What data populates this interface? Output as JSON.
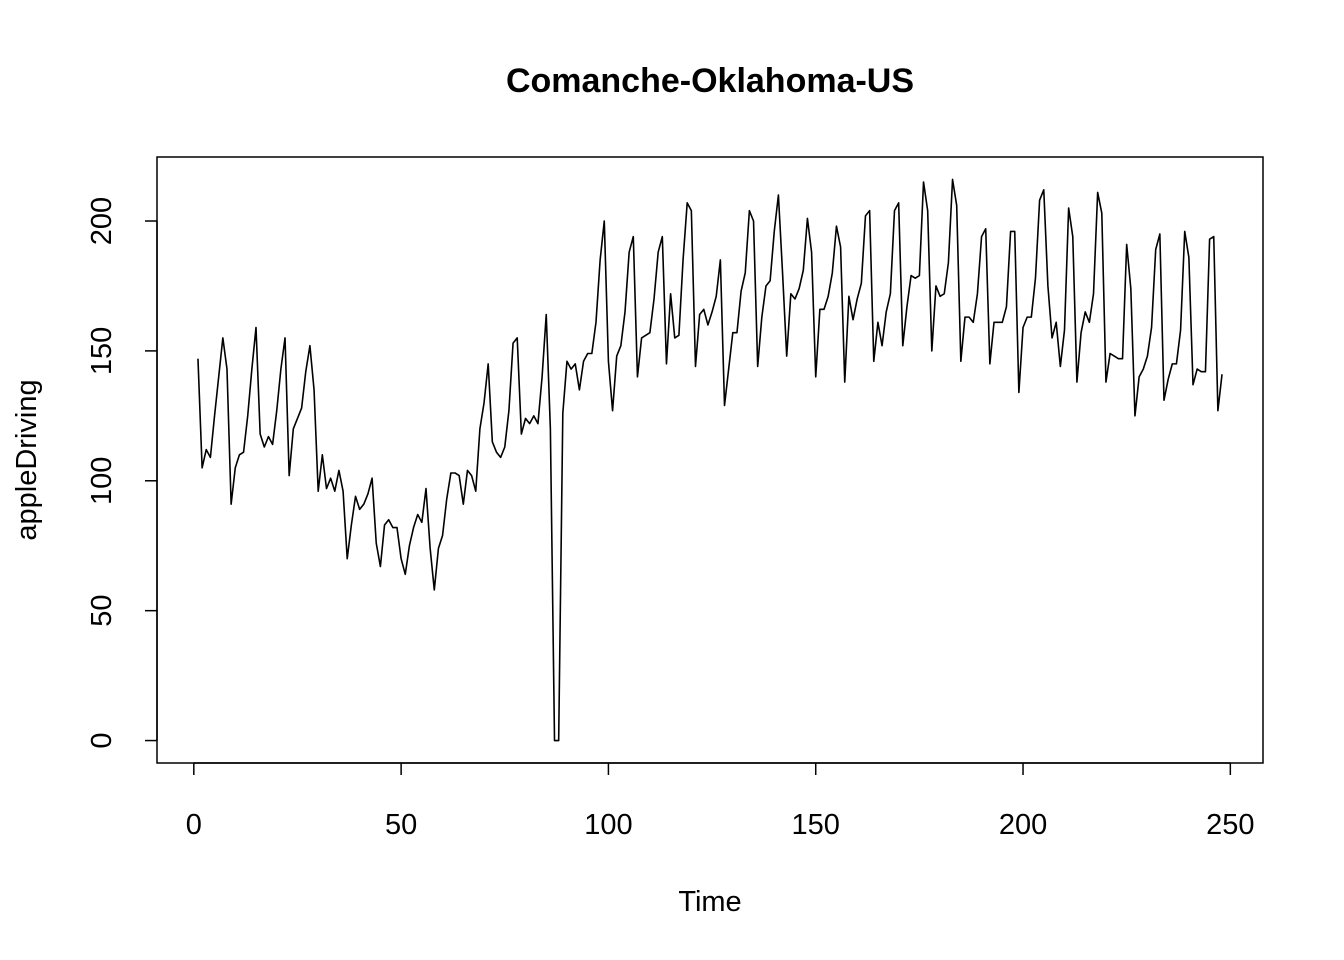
{
  "chart_data": {
    "type": "line",
    "title": "Comanche-Oklahoma-US",
    "xlabel": "Time",
    "ylabel": "appleDriving",
    "x": [
      1,
      2,
      3,
      4,
      5,
      6,
      7,
      8,
      9,
      10,
      11,
      12,
      13,
      14,
      15,
      16,
      17,
      18,
      19,
      20,
      21,
      22,
      23,
      24,
      25,
      26,
      27,
      28,
      29,
      30,
      31,
      32,
      33,
      34,
      35,
      36,
      37,
      38,
      39,
      40,
      41,
      42,
      43,
      44,
      45,
      46,
      47,
      48,
      49,
      50,
      51,
      52,
      53,
      54,
      55,
      56,
      57,
      58,
      59,
      60,
      61,
      62,
      63,
      64,
      65,
      66,
      67,
      68,
      69,
      70,
      71,
      72,
      73,
      74,
      75,
      76,
      77,
      78,
      79,
      80,
      81,
      82,
      83,
      84,
      85,
      86,
      87,
      88,
      89,
      90,
      91,
      92,
      93,
      94,
      95,
      96,
      97,
      98,
      99,
      100,
      101,
      102,
      103,
      104,
      105,
      106,
      107,
      108,
      109,
      110,
      111,
      112,
      113,
      114,
      115,
      116,
      117,
      118,
      119,
      120,
      121,
      122,
      123,
      124,
      125,
      126,
      127,
      128,
      129,
      130,
      131,
      132,
      133,
      134,
      135,
      136,
      137,
      138,
      139,
      140,
      141,
      142,
      143,
      144,
      145,
      146,
      147,
      148,
      149,
      150,
      151,
      152,
      153,
      154,
      155,
      156,
      157,
      158,
      159,
      160,
      161,
      162,
      163,
      164,
      165,
      166,
      167,
      168,
      169,
      170,
      171,
      172,
      173,
      174,
      175,
      176,
      177,
      178,
      179,
      180,
      181,
      182,
      183,
      184,
      185,
      186,
      187,
      188,
      189,
      190,
      191,
      192,
      193,
      194,
      195,
      196,
      197,
      198,
      199,
      200,
      201,
      202,
      203,
      204,
      205,
      206,
      207,
      208,
      209,
      210,
      211,
      212,
      213,
      214,
      215,
      216,
      217,
      218,
      219,
      220,
      221,
      222,
      223,
      224,
      225,
      226,
      227,
      228,
      229,
      230,
      231,
      232,
      233,
      234,
      235,
      236,
      237,
      238,
      239,
      240,
      241,
      242,
      243,
      244,
      245,
      246,
      247,
      248
    ],
    "series": [
      {
        "name": "appleDriving",
        "color": "#000000",
        "values": [
          147,
          105,
          112,
          109,
          125,
          140,
          155,
          143,
          91,
          105,
          110,
          111,
          125,
          143,
          159,
          118,
          113,
          117,
          114,
          127,
          143,
          155,
          102,
          120,
          124,
          128,
          142,
          152,
          135,
          96,
          110,
          97,
          101,
          96,
          104,
          96,
          70,
          83,
          94,
          89,
          91,
          95,
          101,
          76,
          67,
          83,
          85,
          82,
          82,
          70,
          64,
          75,
          82,
          87,
          84,
          97,
          74,
          58,
          74,
          79,
          93,
          103,
          103,
          102,
          91,
          104,
          102,
          96,
          120,
          130,
          145,
          115,
          111,
          109,
          113,
          127,
          153,
          155,
          118,
          124,
          122,
          125,
          122,
          140,
          164,
          120,
          0,
          0,
          126,
          146,
          143,
          145,
          135,
          146,
          149,
          149,
          161,
          185,
          200,
          146,
          127,
          148,
          152,
          165,
          188,
          194,
          140,
          155,
          156,
          157,
          170,
          188,
          194,
          145,
          172,
          155,
          156,
          185,
          207,
          204,
          144,
          164,
          166,
          160,
          165,
          171,
          185,
          129,
          143,
          157,
          157,
          173,
          180,
          204,
          200,
          144,
          163,
          175,
          177,
          196,
          210,
          180,
          148,
          172,
          170,
          174,
          181,
          201,
          188,
          140,
          166,
          166,
          171,
          180,
          198,
          190,
          138,
          171,
          162,
          170,
          176,
          202,
          204,
          146,
          161,
          152,
          165,
          172,
          204,
          207,
          152,
          167,
          179,
          178,
          179,
          215,
          204,
          150,
          175,
          171,
          172,
          184,
          216,
          206,
          146,
          163,
          163,
          161,
          172,
          194,
          197,
          145,
          161,
          161,
          161,
          167,
          196,
          196,
          134,
          159,
          163,
          163,
          178,
          208,
          212,
          175,
          155,
          161,
          144,
          158,
          205,
          194,
          138,
          157,
          165,
          161,
          172,
          211,
          203,
          138,
          149,
          148,
          147,
          147,
          191,
          174,
          125,
          140,
          143,
          148,
          159,
          189,
          195,
          131,
          139,
          145,
          145,
          158,
          196,
          186,
          137,
          143,
          142,
          142,
          193,
          194,
          127,
          141
        ]
      }
    ],
    "xlim": [
      -8.88,
      257.88
    ],
    "ylim": [
      -8.64,
      224.64
    ],
    "xticks": [
      0,
      50,
      100,
      150,
      200,
      250
    ],
    "yticks": [
      0,
      50,
      100,
      150,
      200
    ]
  }
}
